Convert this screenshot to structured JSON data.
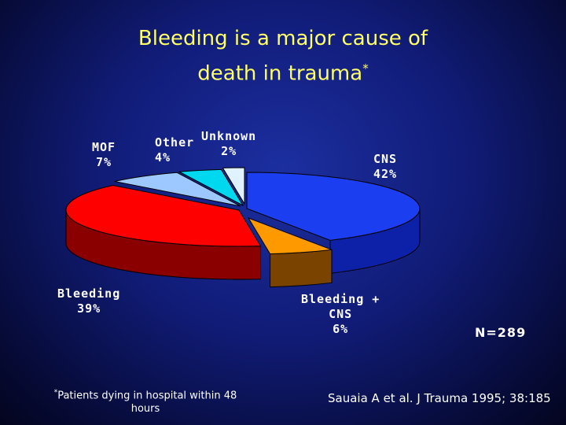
{
  "slide": {
    "title_line1": "Bleeding is a major cause of",
    "title_line2": "death in trauma",
    "title_mark": "*",
    "footnote_mark": "*",
    "footnote": "Patients dying in hospital within 48 hours",
    "n_label": "N=289",
    "citation": "Sauaia A et al. J Trauma 1995; 38:185"
  },
  "chart_data": {
    "type": "pie",
    "style": "3d-exploded",
    "slices": [
      {
        "label_name": "CNS",
        "label_value": "42%",
        "value": 42,
        "color": "#1a3ef0",
        "side_color": "#0c20a8"
      },
      {
        "label_name": "Bleeding + CNS",
        "label_value": "6%",
        "value": 6,
        "color": "#ff9900",
        "side_color": "#7a4400"
      },
      {
        "label_name": "Bleeding",
        "label_value": "39%",
        "value": 39,
        "color": "#ff0000",
        "side_color": "#8a0000"
      },
      {
        "label_name": "MOF",
        "label_value": "7%",
        "value": 7,
        "color": "#9cc8ff",
        "side_color": "#5a7fb0"
      },
      {
        "label_name": "Other",
        "label_value": "4%",
        "value": 4,
        "color": "#00d8f0",
        "side_color": "#007d8c"
      },
      {
        "label_name": "Unknown",
        "label_value": "2%",
        "value": 2,
        "color": "#e0f2ff",
        "side_color": "#8aa0b0"
      }
    ]
  }
}
